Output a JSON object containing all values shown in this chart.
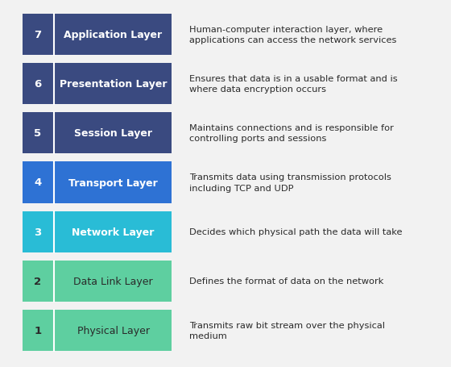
{
  "layers": [
    {
      "number": "7",
      "name": "Application Layer",
      "description": "Human-computer interaction layer, where\napplications can access the network services",
      "bar_color": "#3a4a80",
      "text_color": "#ffffff",
      "name_bold": true
    },
    {
      "number": "6",
      "name": "Presentation Layer",
      "description": "Ensures that data is in a usable format and is\nwhere data encryption occurs",
      "bar_color": "#3a4a80",
      "text_color": "#ffffff",
      "name_bold": true
    },
    {
      "number": "5",
      "name": "Session Layer",
      "description": "Maintains connections and is responsible for\ncontrolling ports and sessions",
      "bar_color": "#3a4a80",
      "text_color": "#ffffff",
      "name_bold": true
    },
    {
      "number": "4",
      "name": "Transport Layer",
      "description": "Transmits data using transmission protocols\nincluding TCP and UDP",
      "bar_color": "#2e72d4",
      "text_color": "#ffffff",
      "name_bold": true
    },
    {
      "number": "3",
      "name": "Network Layer",
      "description": "Decides which physical path the data will take",
      "bar_color": "#29bcd6",
      "text_color": "#ffffff",
      "name_bold": true
    },
    {
      "number": "2",
      "name": "Data Link Layer",
      "description": "Defines the format of data on the network",
      "bar_color": "#5ecfa0",
      "text_color": "#2a2a2a",
      "name_bold": false
    },
    {
      "number": "1",
      "name": "Physical Layer",
      "description": "Transmits raw bit stream over the physical\nmedium",
      "bar_color": "#5ecfa0",
      "text_color": "#2a2a2a",
      "name_bold": false
    }
  ],
  "background_color": "#f2f2f2",
  "desc_text_color": "#2a2a2a",
  "figsize": [
    5.6,
    4.56
  ],
  "dpi": 100
}
